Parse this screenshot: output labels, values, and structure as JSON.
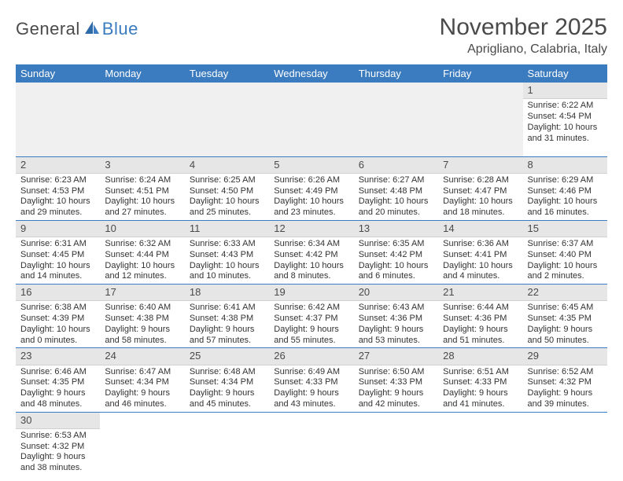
{
  "brand": {
    "part1": "General",
    "part2": "Blue"
  },
  "title": "November 2025",
  "location": "Aprigliano, Calabria, Italy",
  "colors": {
    "header_bg": "#3b7bbf",
    "header_text": "#ffffff",
    "daynum_bg": "#e6e6e6",
    "border": "#3b7bbf",
    "text": "#333333"
  },
  "weekdays": [
    "Sunday",
    "Monday",
    "Tuesday",
    "Wednesday",
    "Thursday",
    "Friday",
    "Saturday"
  ],
  "weeks": [
    [
      {
        "n": "",
        "t": ""
      },
      {
        "n": "",
        "t": ""
      },
      {
        "n": "",
        "t": ""
      },
      {
        "n": "",
        "t": ""
      },
      {
        "n": "",
        "t": ""
      },
      {
        "n": "",
        "t": ""
      },
      {
        "n": "1",
        "t": "Sunrise: 6:22 AM Sunset: 4:54 PM Daylight: 10 hours and 31 minutes."
      }
    ],
    [
      {
        "n": "2",
        "t": "Sunrise: 6:23 AM Sunset: 4:53 PM Daylight: 10 hours and 29 minutes."
      },
      {
        "n": "3",
        "t": "Sunrise: 6:24 AM Sunset: 4:51 PM Daylight: 10 hours and 27 minutes."
      },
      {
        "n": "4",
        "t": "Sunrise: 6:25 AM Sunset: 4:50 PM Daylight: 10 hours and 25 minutes."
      },
      {
        "n": "5",
        "t": "Sunrise: 6:26 AM Sunset: 4:49 PM Daylight: 10 hours and 23 minutes."
      },
      {
        "n": "6",
        "t": "Sunrise: 6:27 AM Sunset: 4:48 PM Daylight: 10 hours and 20 minutes."
      },
      {
        "n": "7",
        "t": "Sunrise: 6:28 AM Sunset: 4:47 PM Daylight: 10 hours and 18 minutes."
      },
      {
        "n": "8",
        "t": "Sunrise: 6:29 AM Sunset: 4:46 PM Daylight: 10 hours and 16 minutes."
      }
    ],
    [
      {
        "n": "9",
        "t": "Sunrise: 6:31 AM Sunset: 4:45 PM Daylight: 10 hours and 14 minutes."
      },
      {
        "n": "10",
        "t": "Sunrise: 6:32 AM Sunset: 4:44 PM Daylight: 10 hours and 12 minutes."
      },
      {
        "n": "11",
        "t": "Sunrise: 6:33 AM Sunset: 4:43 PM Daylight: 10 hours and 10 minutes."
      },
      {
        "n": "12",
        "t": "Sunrise: 6:34 AM Sunset: 4:42 PM Daylight: 10 hours and 8 minutes."
      },
      {
        "n": "13",
        "t": "Sunrise: 6:35 AM Sunset: 4:42 PM Daylight: 10 hours and 6 minutes."
      },
      {
        "n": "14",
        "t": "Sunrise: 6:36 AM Sunset: 4:41 PM Daylight: 10 hours and 4 minutes."
      },
      {
        "n": "15",
        "t": "Sunrise: 6:37 AM Sunset: 4:40 PM Daylight: 10 hours and 2 minutes."
      }
    ],
    [
      {
        "n": "16",
        "t": "Sunrise: 6:38 AM Sunset: 4:39 PM Daylight: 10 hours and 0 minutes."
      },
      {
        "n": "17",
        "t": "Sunrise: 6:40 AM Sunset: 4:38 PM Daylight: 9 hours and 58 minutes."
      },
      {
        "n": "18",
        "t": "Sunrise: 6:41 AM Sunset: 4:38 PM Daylight: 9 hours and 57 minutes."
      },
      {
        "n": "19",
        "t": "Sunrise: 6:42 AM Sunset: 4:37 PM Daylight: 9 hours and 55 minutes."
      },
      {
        "n": "20",
        "t": "Sunrise: 6:43 AM Sunset: 4:36 PM Daylight: 9 hours and 53 minutes."
      },
      {
        "n": "21",
        "t": "Sunrise: 6:44 AM Sunset: 4:36 PM Daylight: 9 hours and 51 minutes."
      },
      {
        "n": "22",
        "t": "Sunrise: 6:45 AM Sunset: 4:35 PM Daylight: 9 hours and 50 minutes."
      }
    ],
    [
      {
        "n": "23",
        "t": "Sunrise: 6:46 AM Sunset: 4:35 PM Daylight: 9 hours and 48 minutes."
      },
      {
        "n": "24",
        "t": "Sunrise: 6:47 AM Sunset: 4:34 PM Daylight: 9 hours and 46 minutes."
      },
      {
        "n": "25",
        "t": "Sunrise: 6:48 AM Sunset: 4:34 PM Daylight: 9 hours and 45 minutes."
      },
      {
        "n": "26",
        "t": "Sunrise: 6:49 AM Sunset: 4:33 PM Daylight: 9 hours and 43 minutes."
      },
      {
        "n": "27",
        "t": "Sunrise: 6:50 AM Sunset: 4:33 PM Daylight: 9 hours and 42 minutes."
      },
      {
        "n": "28",
        "t": "Sunrise: 6:51 AM Sunset: 4:33 PM Daylight: 9 hours and 41 minutes."
      },
      {
        "n": "29",
        "t": "Sunrise: 6:52 AM Sunset: 4:32 PM Daylight: 9 hours and 39 minutes."
      }
    ],
    [
      {
        "n": "30",
        "t": "Sunrise: 6:53 AM Sunset: 4:32 PM Daylight: 9 hours and 38 minutes."
      },
      {
        "n": "",
        "t": ""
      },
      {
        "n": "",
        "t": ""
      },
      {
        "n": "",
        "t": ""
      },
      {
        "n": "",
        "t": ""
      },
      {
        "n": "",
        "t": ""
      },
      {
        "n": "",
        "t": ""
      }
    ]
  ]
}
